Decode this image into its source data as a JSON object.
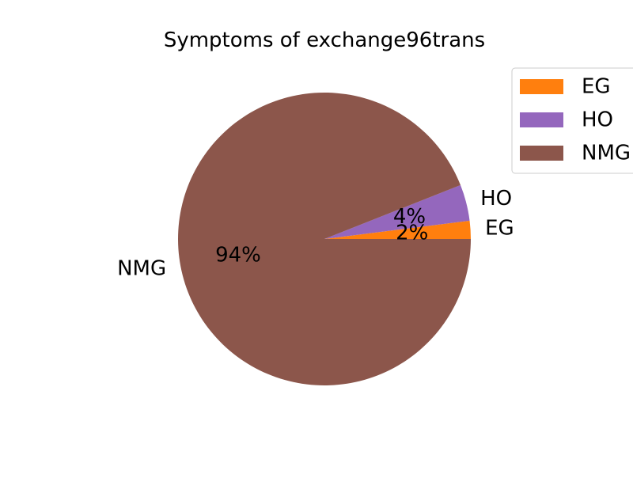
{
  "chart_data": {
    "type": "pie",
    "title": "Symptoms of exchange96trans",
    "categories": [
      "EG",
      "HO",
      "NMG"
    ],
    "values": [
      2,
      4,
      94
    ],
    "percent_labels": [
      "2%",
      "4%",
      "94%"
    ],
    "colors": [
      "#ff7f0e",
      "#9467bd",
      "#8c564b"
    ],
    "legend": {
      "placement": "top-right",
      "entries": [
        "EG",
        "HO",
        "NMG"
      ]
    },
    "start_angle_deg": 0,
    "direction": "counterclockwise"
  }
}
